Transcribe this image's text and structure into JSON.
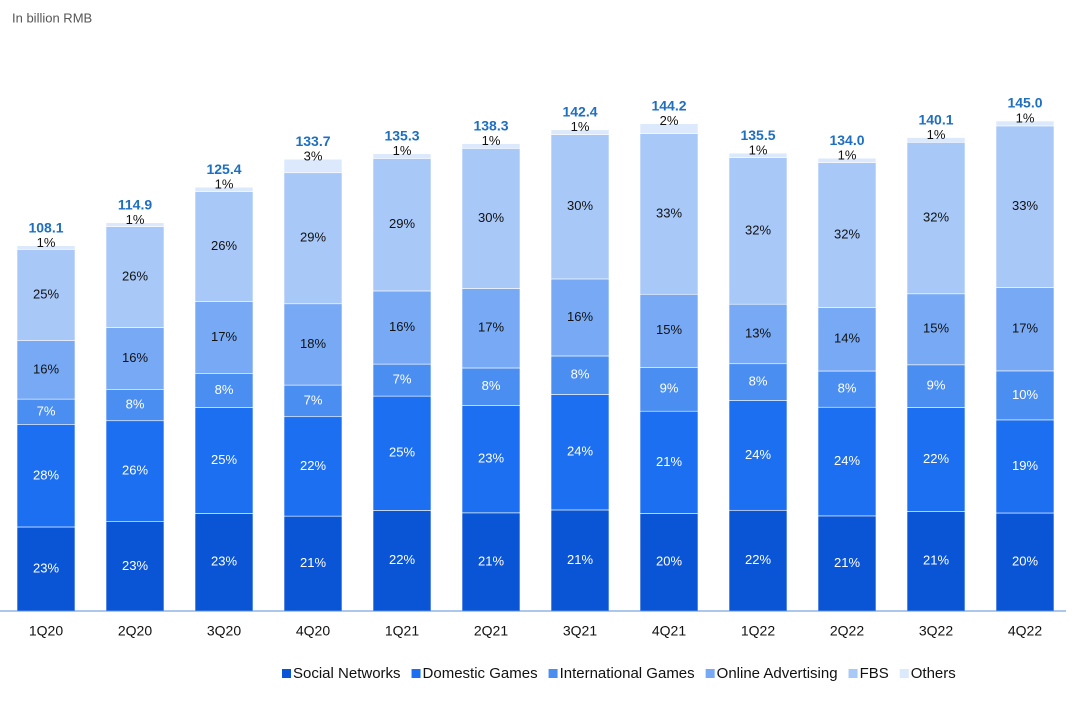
{
  "chart_data": {
    "type": "stacked_bar_share",
    "subtitle": "In billion RMB",
    "categories": [
      "1Q20",
      "2Q20",
      "3Q20",
      "4Q20",
      "1Q21",
      "2Q21",
      "3Q21",
      "4Q21",
      "1Q22",
      "2Q22",
      "3Q22",
      "4Q22"
    ],
    "totals": {
      "color": "#1f6fc0",
      "values": [
        108.1,
        114.9,
        125.4,
        133.7,
        135.3,
        138.3,
        142.4,
        144.2,
        135.5,
        134.0,
        140.1,
        145.0
      ],
      "value_labels": [
        "108.1",
        "114.9",
        "125.4",
        "133.7",
        "135.3",
        "138.3",
        "142.4",
        "144.2",
        "135.5",
        "134.0",
        "140.1",
        "145.0"
      ]
    },
    "series": [
      {
        "name": "Social Networks",
        "color": "#0a55d6",
        "values": [
          23,
          23,
          23,
          21,
          22,
          21,
          21,
          20,
          22,
          21,
          21,
          20
        ],
        "value_labels": [
          "23%",
          "23%",
          "23%",
          "21%",
          "22%",
          "21%",
          "21%",
          "20%",
          "22%",
          "21%",
          "21%",
          "20%"
        ]
      },
      {
        "name": "Domestic Games",
        "color": "#1c6ff0",
        "values": [
          28,
          26,
          25,
          22,
          25,
          23,
          24,
          21,
          24,
          24,
          22,
          19
        ],
        "value_labels": [
          "28%",
          "26%",
          "25%",
          "22%",
          "25%",
          "23%",
          "24%",
          "21%",
          "24%",
          "24%",
          "22%",
          "19%"
        ]
      },
      {
        "name": "International Games",
        "color": "#4a8ef2",
        "values": [
          7,
          8,
          8,
          7,
          7,
          8,
          8,
          9,
          8,
          8,
          9,
          10
        ],
        "value_labels": [
          "7%",
          "8%",
          "8%",
          "7%",
          "7%",
          "8%",
          "8%",
          "9%",
          "8%",
          "8%",
          "9%",
          "10%"
        ]
      },
      {
        "name": "Online Advertising",
        "color": "#78a9f4",
        "values": [
          16,
          16,
          17,
          18,
          16,
          17,
          16,
          15,
          13,
          14,
          15,
          17
        ],
        "value_labels": [
          "16%",
          "16%",
          "17%",
          "18%",
          "16%",
          "17%",
          "16%",
          "15%",
          "13%",
          "14%",
          "15%",
          "17%"
        ]
      },
      {
        "name": "FBS",
        "color": "#a8c8f8",
        "values": [
          25,
          26,
          26,
          29,
          29,
          30,
          30,
          33,
          32,
          32,
          32,
          33
        ],
        "value_labels": [
          "25%",
          "26%",
          "26%",
          "29%",
          "29%",
          "30%",
          "30%",
          "33%",
          "32%",
          "32%",
          "32%",
          "33%"
        ]
      },
      {
        "name": "Others",
        "color": "#dce8fb",
        "values": [
          1,
          1,
          1,
          3,
          1,
          1,
          1,
          2,
          1,
          1,
          1,
          1
        ],
        "value_labels": [
          "1%",
          "1%",
          "1%",
          "3%",
          "1%",
          "1%",
          "1%",
          "2%",
          "1%",
          "1%",
          "1%",
          "1%"
        ]
      }
    ]
  }
}
